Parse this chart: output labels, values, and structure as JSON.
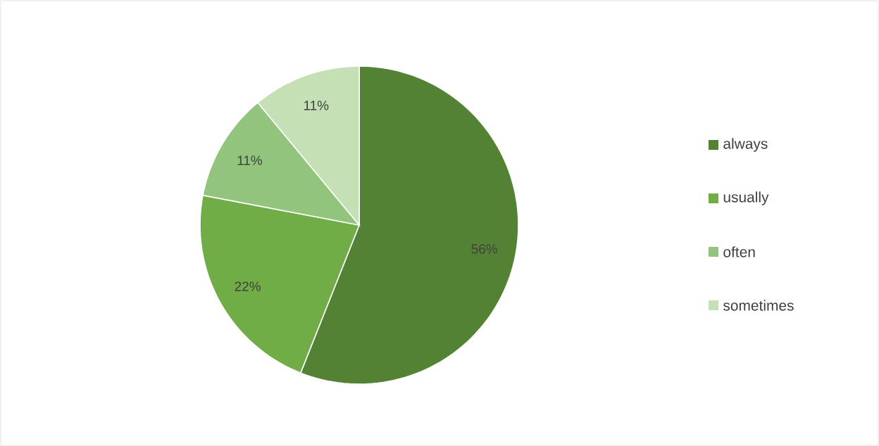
{
  "chart_data": {
    "type": "pie",
    "categories": [
      "always",
      "usually",
      "often",
      "sometimes"
    ],
    "values": [
      56,
      22,
      11,
      11
    ],
    "value_labels": [
      "56%",
      "22%",
      "11%",
      "11%"
    ],
    "colors": [
      "#548235",
      "#70ad47",
      "#93c47d",
      "#c5e0b4"
    ],
    "legend": "right"
  }
}
